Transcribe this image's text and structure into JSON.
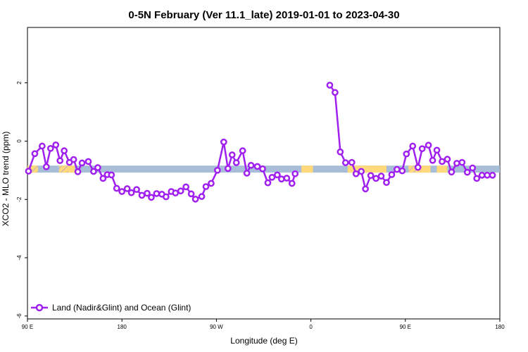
{
  "chart_data": {
    "type": "line",
    "title": "0-5N February (Ver 11.1_late)   2019-01-01 to 2023-04-30",
    "xlabel": "Longitude (deg E)",
    "ylabel": "XCO2 - MLO trend (ppm)",
    "x_ticks": [
      {
        "value": 90,
        "label": "90 E"
      },
      {
        "value": 180,
        "label": "180"
      },
      {
        "value": 270,
        "label": "90 W"
      },
      {
        "value": 360,
        "label": "0"
      },
      {
        "value": 450,
        "label": "90 E"
      },
      {
        "value": 540,
        "label": "180"
      }
    ],
    "y_ticks": [
      {
        "value": 2,
        "label": "2"
      },
      {
        "value": 0,
        "label": "0"
      },
      {
        "value": -2,
        "label": "-2"
      },
      {
        "value": -4,
        "label": "-4"
      },
      {
        "value": -6,
        "label": "-6"
      }
    ],
    "xlim": [
      90,
      540
    ],
    "ylim": [
      -6.1,
      3.9
    ],
    "grid": false,
    "legend_position": "bottom-left",
    "surface_band": {
      "y_range": [
        -1.08,
        -0.84
      ],
      "land_color": "#ffd97a",
      "ocean_color": "#a7bdd8",
      "land_segments": [
        [
          90,
          99
        ],
        [
          126,
          135
        ],
        [
          351,
          362
        ],
        [
          395,
          432
        ],
        [
          460,
          474
        ],
        [
          480,
          490
        ]
      ],
      "hatched_segments": [
        [
          92,
          100
        ],
        [
          120,
          129
        ],
        [
          453,
          461
        ]
      ]
    },
    "series": [
      {
        "name": "Land (Nadir&Glint) and Ocean (Glint)",
        "color": "#a020f0",
        "segments": [
          [
            [
              91,
              -1.03
            ],
            [
              97,
              -0.43
            ],
            [
              104,
              -0.17
            ],
            [
              108,
              -0.88
            ],
            [
              112,
              -0.25
            ],
            [
              117,
              -0.13
            ],
            [
              121,
              -0.67
            ],
            [
              125,
              -0.33
            ],
            [
              130,
              -0.73
            ],
            [
              134,
              -0.63
            ],
            [
              138,
              -1.05
            ],
            [
              142,
              -0.75
            ],
            [
              148,
              -0.7
            ],
            [
              153,
              -1.04
            ],
            [
              157,
              -0.91
            ],
            [
              162,
              -1.28
            ],
            [
              166,
              -1.15
            ],
            [
              170,
              -1.16
            ],
            [
              175,
              -1.62
            ],
            [
              180,
              -1.73
            ],
            [
              185,
              -1.63
            ],
            [
              189,
              -1.77
            ],
            [
              194,
              -1.66
            ],
            [
              199,
              -1.86
            ],
            [
              204,
              -1.79
            ],
            [
              208,
              -1.93
            ],
            [
              213,
              -1.8
            ],
            [
              218,
              -1.82
            ],
            [
              222,
              -1.91
            ],
            [
              227,
              -1.73
            ],
            [
              231,
              -1.78
            ],
            [
              236,
              -1.71
            ],
            [
              241,
              -1.57
            ],
            [
              246,
              -1.81
            ],
            [
              250,
              -1.99
            ],
            [
              256,
              -1.9
            ],
            [
              260,
              -1.56
            ],
            [
              265,
              -1.45
            ],
            [
              271,
              -1.0
            ],
            [
              277,
              -0.03
            ],
            [
              281,
              -0.94
            ],
            [
              285,
              -0.47
            ],
            [
              289,
              -0.74
            ],
            [
              295,
              -0.33
            ],
            [
              299,
              -1.1
            ],
            [
              303,
              -0.83
            ],
            [
              309,
              -0.87
            ],
            [
              314,
              -0.95
            ],
            [
              319,
              -1.43
            ],
            [
              323,
              -1.24
            ],
            [
              328,
              -1.16
            ],
            [
              332,
              -1.3
            ],
            [
              337,
              -1.27
            ],
            [
              342,
              -1.45
            ],
            [
              345,
              -1.12
            ]
          ],
          [
            [
              378,
              1.92
            ],
            [
              383,
              1.67
            ],
            [
              388,
              -0.37
            ],
            [
              393,
              -0.74
            ],
            [
              399,
              -0.73
            ],
            [
              403,
              -1.12
            ],
            [
              408,
              -1.04
            ],
            [
              412,
              -1.64
            ],
            [
              417,
              -1.18
            ],
            [
              422,
              -1.28
            ],
            [
              427,
              -1.2
            ],
            [
              432,
              -1.42
            ],
            [
              437,
              -1.15
            ],
            [
              442,
              -0.97
            ],
            [
              447,
              -1.02
            ],
            [
              451,
              -0.44
            ],
            [
              457,
              -0.17
            ],
            [
              462,
              -0.9
            ],
            [
              466,
              -0.26
            ],
            [
              472,
              -0.14
            ],
            [
              476,
              -0.66
            ],
            [
              480,
              -0.31
            ],
            [
              485,
              -0.7
            ],
            [
              490,
              -0.62
            ],
            [
              494,
              -1.06
            ],
            [
              499,
              -0.76
            ],
            [
              504,
              -0.73
            ],
            [
              509,
              -1.07
            ],
            [
              514,
              -0.92
            ],
            [
              518,
              -1.28
            ],
            [
              523,
              -1.17
            ],
            [
              528,
              -1.17
            ],
            [
              533,
              -1.17
            ]
          ]
        ]
      }
    ]
  }
}
